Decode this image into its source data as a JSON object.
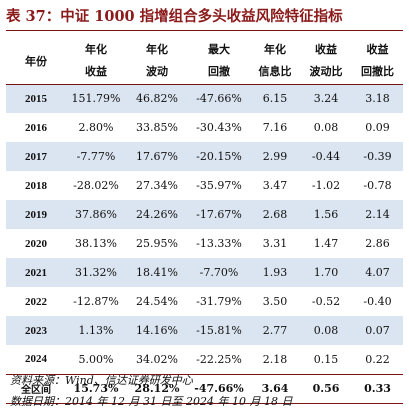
{
  "title": "表 37：中证 1000 指增组合多头收益风险特征指标",
  "table": {
    "year_header": "年份",
    "columns": [
      {
        "line1": "年化",
        "line2": "收益"
      },
      {
        "line1": "年化",
        "line2": "波动"
      },
      {
        "line1": "最大",
        "line2": "回撤"
      },
      {
        "line1": "年化",
        "line2": "信息比"
      },
      {
        "line1": "收益",
        "line2": "波动比"
      },
      {
        "line1": "收益",
        "line2": "回撤比"
      }
    ],
    "rows": [
      {
        "year": "2015",
        "values": [
          "151.79%",
          "46.82%",
          "-47.66%",
          "6.15",
          "3.24",
          "3.18"
        ]
      },
      {
        "year": "2016",
        "values": [
          "2.80%",
          "33.85%",
          "-30.43%",
          "7.16",
          "0.08",
          "0.09"
        ]
      },
      {
        "year": "2017",
        "values": [
          "-7.77%",
          "17.67%",
          "-20.15%",
          "2.99",
          "-0.44",
          "-0.39"
        ]
      },
      {
        "year": "2018",
        "values": [
          "-28.02%",
          "27.34%",
          "-35.97%",
          "3.47",
          "-1.02",
          "-0.78"
        ]
      },
      {
        "year": "2019",
        "values": [
          "37.86%",
          "24.26%",
          "-17.67%",
          "2.68",
          "1.56",
          "2.14"
        ]
      },
      {
        "year": "2020",
        "values": [
          "38.13%",
          "25.95%",
          "-13.33%",
          "3.31",
          "1.47",
          "2.86"
        ]
      },
      {
        "year": "2021",
        "values": [
          "31.32%",
          "18.41%",
          "-7.70%",
          "1.93",
          "1.70",
          "4.07"
        ]
      },
      {
        "year": "2022",
        "values": [
          "-12.87%",
          "24.54%",
          "-31.79%",
          "3.50",
          "-0.52",
          "-0.40"
        ]
      },
      {
        "year": "2023",
        "values": [
          "1.13%",
          "14.16%",
          "-15.81%",
          "2.77",
          "0.08",
          "0.07"
        ]
      },
      {
        "year": "2024",
        "values": [
          "5.00%",
          "34.02%",
          "-22.25%",
          "2.18",
          "0.15",
          "0.22"
        ]
      }
    ],
    "total": {
      "year": "全区间",
      "values": [
        "15.73%",
        "28.12%",
        "-47.66%",
        "3.64",
        "0.56",
        "0.33"
      ]
    },
    "shade_color": "#dbe5f1",
    "rule_color": "#7a1414"
  },
  "footer": {
    "source": "资料来源：Wind、信达证券研发中心",
    "date": "数据日期：2014 年 12 月 31 日至 2024 年 10 月 18 日"
  }
}
